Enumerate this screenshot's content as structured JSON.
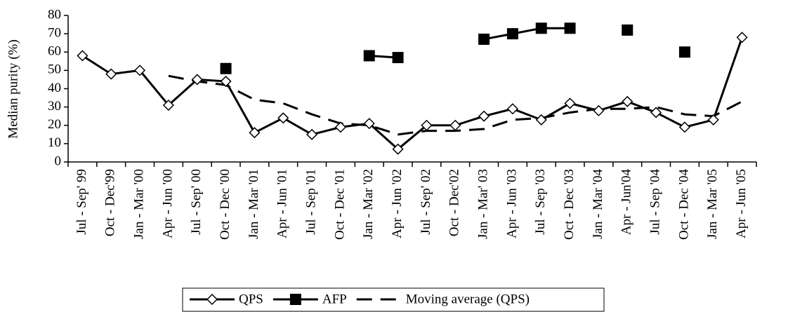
{
  "chart_data": {
    "type": "line",
    "ylabel": "Median purity (%)",
    "categories": [
      "Jul - Sep' 99",
      "Oct - Dec'99",
      "Jan - Mar '00",
      "Apr - Jun '00",
      "Jul - Sep' 00",
      "Oct - Dec '00",
      "Jan - Mar '01",
      "Apr - Jun '01",
      "Jul - Sep '01",
      "Oct - Dec '01",
      "Jan - Mar '02",
      "Apr - Jun '02",
      "Jul - Sep' 02",
      "Oct - Dec'02",
      "Jan - Mar' 03",
      "Apr - Jun '03",
      "Jul - Sep '03",
      "Oct - Dec '03",
      "Jan - Mar '04",
      "Apr - Jun'04",
      "Jul - Sep '04",
      "Oct - Dec '04",
      "Jan - Mar '05",
      "Apr - Jun '05"
    ],
    "series": [
      {
        "name": "QPS",
        "color": "#000000",
        "marker": "diamond",
        "line": "solid",
        "values": [
          58,
          48,
          50,
          31,
          45,
          44,
          16,
          24,
          15,
          19,
          21,
          7,
          20,
          20,
          25,
          29,
          23,
          32,
          28,
          33,
          27,
          19,
          23,
          68
        ]
      },
      {
        "name": "AFP",
        "color": "#000000",
        "marker": "square",
        "line": "solid",
        "values": [
          null,
          null,
          null,
          null,
          null,
          51,
          null,
          null,
          null,
          null,
          58,
          57,
          null,
          null,
          67,
          70,
          73,
          73,
          null,
          72,
          null,
          60,
          null,
          null
        ]
      },
      {
        "name": "Moving average (QPS)",
        "color": "#000000",
        "marker": "none",
        "line": "dashed",
        "values": [
          null,
          null,
          null,
          47,
          44,
          42,
          34,
          32,
          26,
          21,
          20,
          15,
          17,
          17,
          18,
          23,
          24,
          27,
          29,
          29,
          30,
          26,
          25,
          33
        ]
      }
    ],
    "ylim": [
      0,
      80
    ],
    "yticks": [
      0,
      10,
      20,
      30,
      40,
      50,
      60,
      70,
      80
    ],
    "legend": "bottom"
  }
}
